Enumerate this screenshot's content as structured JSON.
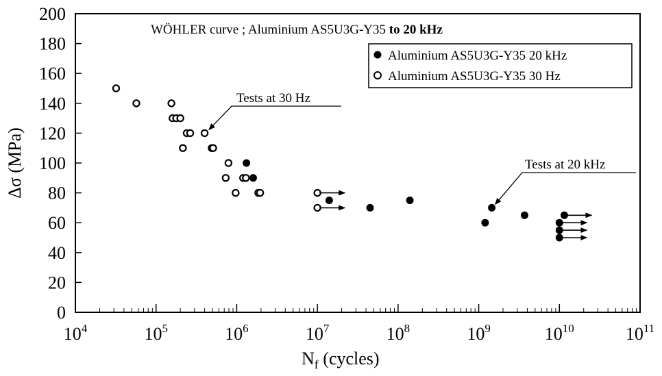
{
  "chart_data": {
    "type": "scatter",
    "title": "WÖHLER curve ; Aluminium AS5U3G-Y35",
    "title_bold_suffix": "to 20 kHz",
    "xlabel_main": "N",
    "xlabel_sub": "f",
    "xlabel_rest": " (cycles)",
    "ylabel": "Δσ (MPa)",
    "x_scale": "log",
    "xlim": [
      10000,
      100000000000
    ],
    "ylim": [
      0,
      200
    ],
    "grid": false,
    "legend_position": "top-right",
    "x_ticks": [
      {
        "base": "10",
        "exp": "4"
      },
      {
        "base": "10",
        "exp": "5"
      },
      {
        "base": "10",
        "exp": "6"
      },
      {
        "base": "10",
        "exp": "7"
      },
      {
        "base": "10",
        "exp": "8"
      },
      {
        "base": "10",
        "exp": "9"
      },
      {
        "base": "10",
        "exp": "10"
      },
      {
        "base": "10",
        "exp": "11"
      }
    ],
    "y_ticks": [
      "0",
      "20",
      "40",
      "60",
      "80",
      "100",
      "120",
      "140",
      "160",
      "180",
      "200"
    ],
    "series": [
      {
        "name": "Aluminium AS5U3G-Y35 20 kHz",
        "marker": "filled-circle",
        "points": [
          [
            1320000,
            100
          ],
          [
            1600000,
            90
          ],
          [
            14000000,
            75
          ],
          [
            45000000,
            70
          ],
          [
            140000000,
            75
          ],
          [
            1200000000,
            60
          ],
          [
            1450000000,
            70
          ],
          [
            3700000000,
            65
          ],
          [
            10000000000,
            60
          ],
          [
            10000000000,
            55
          ],
          [
            10000000000,
            50
          ],
          [
            11500000000,
            65
          ]
        ],
        "runout_indices": [
          8,
          9,
          10,
          11
        ]
      },
      {
        "name": "Aluminium AS5U3G-Y35 30 Hz",
        "marker": "open-circle",
        "points": [
          [
            32000,
            150
          ],
          [
            57000,
            140
          ],
          [
            155000,
            140
          ],
          [
            160000,
            130
          ],
          [
            178000,
            130
          ],
          [
            200000,
            130
          ],
          [
            215000,
            110
          ],
          [
            240000,
            120
          ],
          [
            265000,
            120
          ],
          [
            400000,
            120
          ],
          [
            490000,
            110
          ],
          [
            510000,
            110
          ],
          [
            730000,
            90
          ],
          [
            790000,
            100
          ],
          [
            970000,
            80
          ],
          [
            1200000,
            90
          ],
          [
            1300000,
            90
          ],
          [
            1850000,
            80
          ],
          [
            1950000,
            80
          ],
          [
            10000000,
            80
          ],
          [
            10000000,
            70
          ]
        ],
        "runout_indices": [
          19,
          20
        ]
      }
    ],
    "annotations": [
      {
        "text": "Tests at 30 Hz",
        "points_to": [
          410000,
          120
        ]
      },
      {
        "text": "Tests at 20 kHz",
        "points_to": [
          1450000000,
          70
        ]
      }
    ]
  }
}
